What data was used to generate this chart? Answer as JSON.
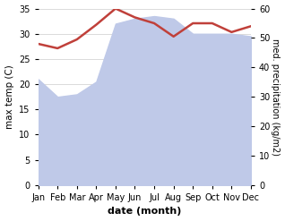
{
  "months": [
    "Jan",
    "Feb",
    "Mar",
    "Apr",
    "May",
    "Jun",
    "Jul",
    "Aug",
    "Sep",
    "Oct",
    "Nov",
    "Dec"
  ],
  "month_indices": [
    0,
    1,
    2,
    3,
    4,
    5,
    6,
    7,
    8,
    9,
    10,
    11
  ],
  "max_temp": [
    21,
    17.5,
    18,
    20.5,
    32,
    33,
    33.5,
    33,
    30,
    30,
    30,
    29.5
  ],
  "precipitation": [
    48,
    46.5,
    49.5,
    54.5,
    60,
    57,
    55,
    50.5,
    55,
    55,
    52,
    54
  ],
  "temp_fill_color": "#bfc9e8",
  "precip_color": "#c0403a",
  "left_ylim": [
    0,
    35
  ],
  "right_ylim": [
    0,
    60
  ],
  "left_yticks": [
    0,
    5,
    10,
    15,
    20,
    25,
    30,
    35
  ],
  "right_yticks": [
    0,
    10,
    20,
    30,
    40,
    50,
    60
  ],
  "xlabel": "date (month)",
  "ylabel_left": "max temp (C)",
  "ylabel_right": "med. precipitation (kg/m2)",
  "bg_color": "#ffffff",
  "grid_color": "#cccccc"
}
